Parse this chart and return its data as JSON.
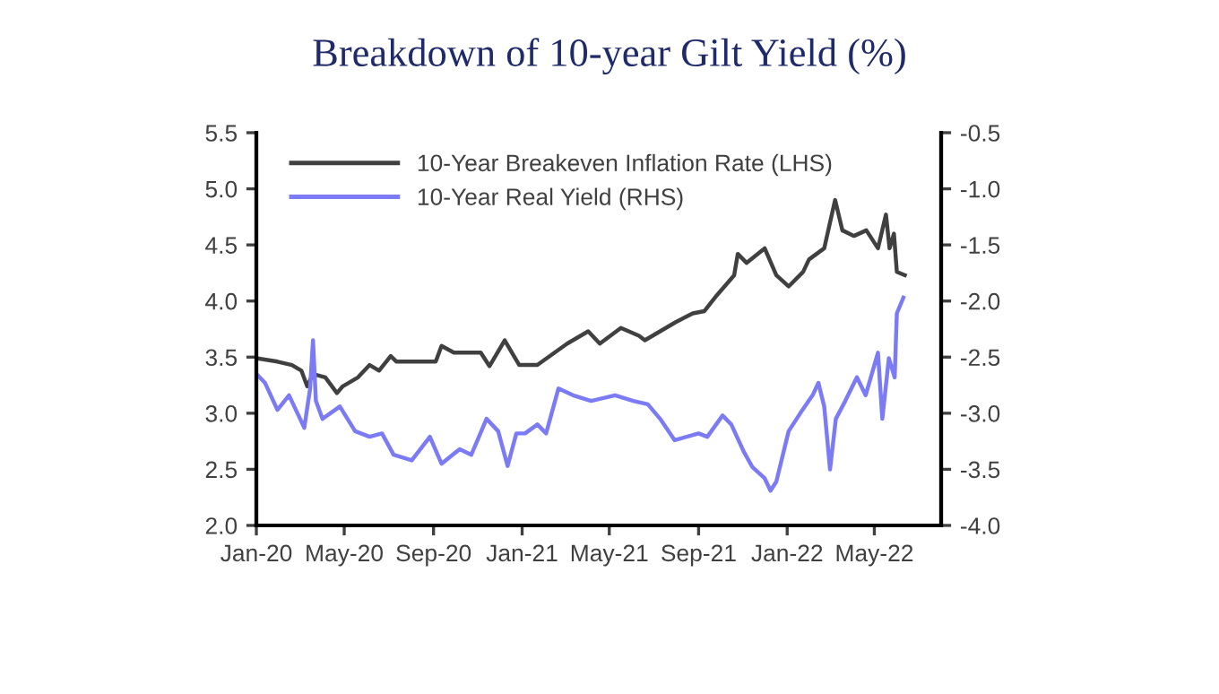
{
  "chart_data": {
    "type": "line",
    "title": "Breakdown of 10-year Gilt Yield (%)",
    "xlim": [
      "2020-01-01",
      "2022-08-01"
    ],
    "xticks": [
      {
        "value": "2020-01-01",
        "label": "Jan-20"
      },
      {
        "value": "2020-05-01",
        "label": "May-20"
      },
      {
        "value": "2020-09-01",
        "label": "Sep-20"
      },
      {
        "value": "2021-01-01",
        "label": "Jan-21"
      },
      {
        "value": "2021-05-01",
        "label": "May-21"
      },
      {
        "value": "2021-09-01",
        "label": "Sep-21"
      },
      {
        "value": "2022-01-01",
        "label": "Jan-22"
      },
      {
        "value": "2022-05-01",
        "label": "May-22"
      }
    ],
    "ylim": [
      2,
      5.5
    ],
    "yticks": [
      {
        "value": 2,
        "label": "2.0"
      },
      2.5,
      {
        "value": 3,
        "label": "3.0"
      },
      3.5,
      {
        "value": 4,
        "label": "4.0"
      },
      4.5,
      {
        "value": 5,
        "label": "5.0"
      },
      5.5
    ],
    "y2lim": [
      -4,
      -0.5
    ],
    "y2ticks": [
      {
        "value": -4,
        "label": "-4.0"
      },
      -3.5,
      {
        "value": -3,
        "label": "-3.0"
      },
      -2.5,
      {
        "value": -2,
        "label": "-2.0"
      },
      -1.5,
      {
        "value": -1,
        "label": "-1.0"
      },
      -0.5
    ],
    "grid": false,
    "legend": "top left",
    "marker": "none",
    "line_style": "solid",
    "series": [
      {
        "name": "10-Year Breakeven Inflation Rate (LHS)",
        "color": "#404040",
        "x": [
          "2020-01-01",
          "2020-01-30",
          "2020-02-19",
          "2020-03-03",
          "2020-03-11",
          "2020-03-19",
          "2020-04-05",
          "2020-04-21",
          "2020-04-29",
          "2020-05-20",
          "2020-06-05",
          "2020-06-18",
          "2020-07-04",
          "2020-07-12",
          "2020-09-04",
          "2020-09-12",
          "2020-09-29",
          "2020-11-05",
          "2020-11-17",
          "2020-12-08",
          "2020-12-28",
          "2021-01-22",
          "2021-03-04",
          "2021-04-02",
          "2021-04-18",
          "2021-05-17",
          "2021-06-11",
          "2021-06-19",
          "2021-07-31",
          "2021-08-24",
          "2021-09-09",
          "2021-09-26",
          "2021-10-20",
          "2021-10-25",
          "2021-11-06",
          "2021-12-01",
          "2021-12-17",
          "2022-01-03",
          "2022-01-23",
          "2022-01-31",
          "2022-02-21",
          "2022-03-08",
          "2022-03-18",
          "2022-04-03",
          "2022-04-20",
          "2022-05-06",
          "2022-05-17",
          "2022-05-22",
          "2022-05-28",
          "2022-06-01",
          "2022-06-12"
        ],
        "values": [
          3.49,
          3.46,
          3.43,
          3.38,
          3.24,
          3.35,
          3.32,
          3.18,
          3.24,
          3.32,
          3.43,
          3.38,
          3.51,
          3.46,
          3.46,
          3.6,
          3.54,
          3.54,
          3.42,
          3.65,
          3.43,
          3.43,
          3.62,
          3.73,
          3.62,
          3.76,
          3.69,
          3.65,
          3.81,
          3.89,
          3.91,
          4.05,
          4.23,
          4.42,
          4.34,
          4.47,
          4.23,
          4.13,
          4.26,
          4.37,
          4.47,
          4.9,
          4.63,
          4.58,
          4.63,
          4.47,
          4.77,
          4.47,
          4.6,
          4.26,
          4.23
        ]
      },
      {
        "name": "10-Year Real Yield (RHS)",
        "color": "#7b7bf5",
        "axis": "y2",
        "x": [
          "2020-01-01",
          "2020-01-13",
          "2020-01-30",
          "2020-02-15",
          "2020-03-07",
          "2020-03-15",
          "2020-03-19",
          "2020-03-23",
          "2020-04-01",
          "2020-04-25",
          "2020-05-16",
          "2020-06-05",
          "2020-06-22",
          "2020-07-08",
          "2020-08-02",
          "2020-08-27",
          "2020-09-12",
          "2020-10-07",
          "2020-10-23",
          "2020-11-13",
          "2020-11-29",
          "2020-12-12",
          "2020-12-24",
          "2021-01-05",
          "2021-01-22",
          "2021-02-03",
          "2021-02-20",
          "2021-03-12",
          "2021-04-06",
          "2021-05-09",
          "2021-06-03",
          "2021-06-23",
          "2021-07-10",
          "2021-07-30",
          "2021-09-01",
          "2021-09-13",
          "2021-10-04",
          "2021-10-16",
          "2021-11-02",
          "2021-11-14",
          "2021-12-01",
          "2021-12-09",
          "2021-12-17",
          "2022-01-03",
          "2022-01-19",
          "2022-02-05",
          "2022-02-13",
          "2022-02-21",
          "2022-03-01",
          "2022-03-09",
          "2022-03-22",
          "2022-04-07",
          "2022-04-19",
          "2022-05-06",
          "2022-05-12",
          "2022-05-21",
          "2022-05-29",
          "2022-06-01",
          "2022-06-10"
        ],
        "values": [
          -2.65,
          -2.73,
          -2.97,
          -2.84,
          -3.13,
          -2.78,
          -2.35,
          -2.89,
          -3.05,
          -2.94,
          -3.16,
          -3.21,
          -3.18,
          -3.37,
          -3.42,
          -3.21,
          -3.45,
          -3.32,
          -3.37,
          -3.05,
          -3.16,
          -3.47,
          -3.18,
          -3.18,
          -3.1,
          -3.18,
          -2.78,
          -2.84,
          -2.89,
          -2.84,
          -2.89,
          -2.92,
          -3.05,
          -3.24,
          -3.18,
          -3.21,
          -3.02,
          -3.1,
          -3.34,
          -3.48,
          -3.58,
          -3.69,
          -3.61,
          -3.16,
          -3.0,
          -2.84,
          -2.73,
          -2.94,
          -3.5,
          -3.05,
          -2.89,
          -2.68,
          -2.84,
          -2.46,
          -3.05,
          -2.51,
          -2.68,
          -2.11,
          -1.97
        ]
      }
    ]
  }
}
